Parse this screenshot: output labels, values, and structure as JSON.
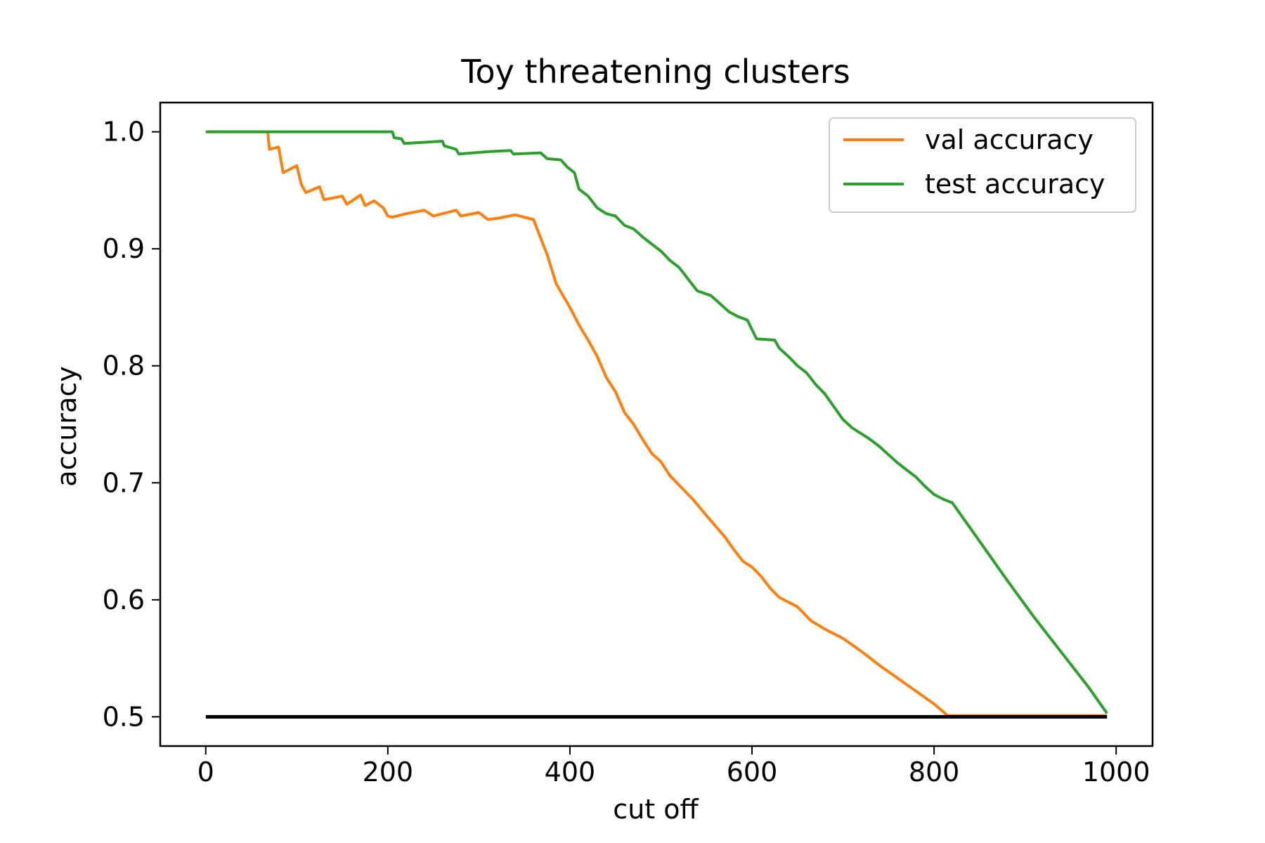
{
  "chart_data": {
    "type": "line",
    "title": "Toy threatening clusters",
    "xlabel": "cut off",
    "ylabel": "accuracy",
    "xlim": [
      -50,
      1040
    ],
    "ylim": [
      0.475,
      1.025
    ],
    "xticks": [
      0,
      200,
      400,
      600,
      800,
      1000
    ],
    "yticks": [
      0.5,
      0.6,
      0.7,
      0.8,
      0.9,
      1.0
    ],
    "xtick_labels": [
      "0",
      "200",
      "400",
      "600",
      "800",
      "1000"
    ],
    "ytick_labels": [
      "0.5",
      "0.6",
      "0.7",
      "0.8",
      "0.9",
      "1.0"
    ],
    "grid": false,
    "legend_position": "top-right",
    "series": [
      {
        "name": "val accuracy",
        "color": "#ff7f0e",
        "points": [
          [
            0,
            1.0
          ],
          [
            68,
            1.0
          ],
          [
            70,
            0.985
          ],
          [
            80,
            0.987
          ],
          [
            85,
            0.965
          ],
          [
            100,
            0.971
          ],
          [
            105,
            0.955
          ],
          [
            110,
            0.948
          ],
          [
            125,
            0.953
          ],
          [
            130,
            0.942
          ],
          [
            150,
            0.945
          ],
          [
            155,
            0.938
          ],
          [
            170,
            0.946
          ],
          [
            175,
            0.937
          ],
          [
            185,
            0.941
          ],
          [
            195,
            0.935
          ],
          [
            200,
            0.928
          ],
          [
            205,
            0.927
          ],
          [
            220,
            0.93
          ],
          [
            240,
            0.933
          ],
          [
            250,
            0.928
          ],
          [
            260,
            0.93
          ],
          [
            275,
            0.933
          ],
          [
            280,
            0.928
          ],
          [
            300,
            0.931
          ],
          [
            310,
            0.925
          ],
          [
            320,
            0.926
          ],
          [
            340,
            0.929
          ],
          [
            360,
            0.925
          ],
          [
            365,
            0.915
          ],
          [
            375,
            0.895
          ],
          [
            385,
            0.87
          ],
          [
            400,
            0.85
          ],
          [
            410,
            0.835
          ],
          [
            420,
            0.822
          ],
          [
            430,
            0.808
          ],
          [
            440,
            0.79
          ],
          [
            450,
            0.778
          ],
          [
            460,
            0.76
          ],
          [
            470,
            0.75
          ],
          [
            480,
            0.737
          ],
          [
            490,
            0.725
          ],
          [
            500,
            0.718
          ],
          [
            510,
            0.706
          ],
          [
            520,
            0.698
          ],
          [
            535,
            0.686
          ],
          [
            550,
            0.672
          ],
          [
            560,
            0.663
          ],
          [
            570,
            0.654
          ],
          [
            580,
            0.643
          ],
          [
            590,
            0.633
          ],
          [
            600,
            0.628
          ],
          [
            610,
            0.62
          ],
          [
            620,
            0.61
          ],
          [
            630,
            0.602
          ],
          [
            650,
            0.594
          ],
          [
            665,
            0.582
          ],
          [
            680,
            0.575
          ],
          [
            700,
            0.567
          ],
          [
            720,
            0.556
          ],
          [
            740,
            0.544
          ],
          [
            760,
            0.533
          ],
          [
            780,
            0.522
          ],
          [
            800,
            0.511
          ],
          [
            815,
            0.501
          ],
          [
            990,
            0.501
          ]
        ]
      },
      {
        "name": "test accuracy",
        "color": "#2ca02c",
        "points": [
          [
            0,
            1.0
          ],
          [
            205,
            1.0
          ],
          [
            207,
            0.995
          ],
          [
            215,
            0.994
          ],
          [
            218,
            0.99
          ],
          [
            260,
            0.992
          ],
          [
            262,
            0.988
          ],
          [
            275,
            0.985
          ],
          [
            278,
            0.981
          ],
          [
            310,
            0.983
          ],
          [
            335,
            0.984
          ],
          [
            338,
            0.981
          ],
          [
            368,
            0.982
          ],
          [
            375,
            0.977
          ],
          [
            390,
            0.976
          ],
          [
            397,
            0.97
          ],
          [
            405,
            0.965
          ],
          [
            410,
            0.951
          ],
          [
            420,
            0.945
          ],
          [
            430,
            0.935
          ],
          [
            440,
            0.93
          ],
          [
            450,
            0.928
          ],
          [
            460,
            0.92
          ],
          [
            470,
            0.917
          ],
          [
            480,
            0.91
          ],
          [
            490,
            0.904
          ],
          [
            500,
            0.898
          ],
          [
            510,
            0.89
          ],
          [
            520,
            0.884
          ],
          [
            530,
            0.874
          ],
          [
            540,
            0.864
          ],
          [
            555,
            0.86
          ],
          [
            565,
            0.853
          ],
          [
            575,
            0.846
          ],
          [
            585,
            0.842
          ],
          [
            595,
            0.839
          ],
          [
            605,
            0.823
          ],
          [
            625,
            0.822
          ],
          [
            630,
            0.815
          ],
          [
            640,
            0.808
          ],
          [
            650,
            0.8
          ],
          [
            660,
            0.794
          ],
          [
            670,
            0.784
          ],
          [
            680,
            0.776
          ],
          [
            690,
            0.765
          ],
          [
            700,
            0.754
          ],
          [
            710,
            0.747
          ],
          [
            720,
            0.742
          ],
          [
            730,
            0.737
          ],
          [
            740,
            0.731
          ],
          [
            750,
            0.724
          ],
          [
            760,
            0.717
          ],
          [
            770,
            0.711
          ],
          [
            780,
            0.705
          ],
          [
            790,
            0.697
          ],
          [
            800,
            0.69
          ],
          [
            810,
            0.686
          ],
          [
            820,
            0.683
          ],
          [
            850,
            0.65
          ],
          [
            880,
            0.617
          ],
          [
            910,
            0.585
          ],
          [
            940,
            0.555
          ],
          [
            970,
            0.525
          ],
          [
            990,
            0.503
          ]
        ]
      },
      {
        "name": "",
        "color": "#000000",
        "points": [
          [
            0,
            0.5
          ],
          [
            990,
            0.5
          ]
        ]
      }
    ]
  }
}
